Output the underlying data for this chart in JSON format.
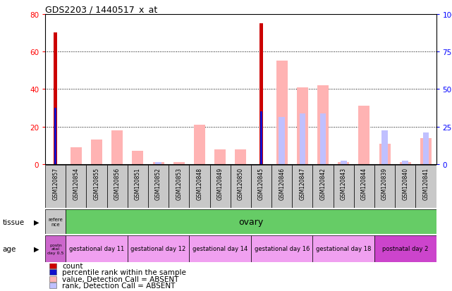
{
  "title": "GDS2203 / 1440517_x_at",
  "samples": [
    "GSM120857",
    "GSM120854",
    "GSM120855",
    "GSM120856",
    "GSM120851",
    "GSM120852",
    "GSM120853",
    "GSM120848",
    "GSM120849",
    "GSM120850",
    "GSM120845",
    "GSM120846",
    "GSM120847",
    "GSM120842",
    "GSM120843",
    "GSM120844",
    "GSM120839",
    "GSM120840",
    "GSM120841"
  ],
  "count_values": [
    70,
    0,
    0,
    0,
    0,
    0,
    0,
    0,
    0,
    0,
    75,
    0,
    0,
    0,
    0,
    0,
    0,
    0,
    0
  ],
  "rank_values": [
    30,
    0,
    0,
    0,
    0,
    0,
    0,
    0,
    0,
    0,
    28,
    0,
    0,
    0,
    0,
    0,
    0,
    0,
    0
  ],
  "absent_value": [
    0,
    9,
    13,
    18,
    7,
    1,
    1,
    21,
    8,
    8,
    0,
    55,
    41,
    42,
    1,
    31,
    11,
    1,
    14
  ],
  "absent_rank": [
    0,
    0,
    0,
    0,
    0,
    1,
    0,
    0,
    0,
    0,
    0,
    25,
    27,
    27,
    2,
    0,
    18,
    2,
    17
  ],
  "ylim_left": [
    0,
    80
  ],
  "ylim_right": [
    0,
    100
  ],
  "yticks_left": [
    0,
    20,
    40,
    60,
    80
  ],
  "yticks_right": [
    0,
    25,
    50,
    75,
    100
  ],
  "count_color": "#cc0000",
  "rank_color": "#1111cc",
  "absent_val_color": "#ffb3b3",
  "absent_rank_color": "#c0c0ff",
  "tissue_label": "tissue",
  "age_label": "age",
  "tissue_ref_label": "refere\nnce",
  "tissue_ref_color": "#c8c8c8",
  "tissue_ovary_label": "ovary",
  "tissue_ovary_color": "#66cc66",
  "age_ref_label": "postn\natal\nday 0.5",
  "age_ref_color": "#cc66cc",
  "age_groups": [
    {
      "label": "gestational day 11",
      "color": "#f0a0f0",
      "start": 1,
      "end": 4
    },
    {
      "label": "gestational day 12",
      "color": "#f0a0f0",
      "start": 4,
      "end": 7
    },
    {
      "label": "gestational day 14",
      "color": "#f0a0f0",
      "start": 7,
      "end": 10
    },
    {
      "label": "gestational day 16",
      "color": "#f0a0f0",
      "start": 10,
      "end": 13
    },
    {
      "label": "gestational day 18",
      "color": "#f0a0f0",
      "start": 13,
      "end": 16
    },
    {
      "label": "postnatal day 2",
      "color": "#cc44cc",
      "start": 16,
      "end": 19
    }
  ],
  "legend_items": [
    {
      "label": "count",
      "color": "#cc0000"
    },
    {
      "label": "percentile rank within the sample",
      "color": "#1111cc"
    },
    {
      "label": "value, Detection Call = ABSENT",
      "color": "#ffb3b3"
    },
    {
      "label": "rank, Detection Call = ABSENT",
      "color": "#c0c0ff"
    }
  ],
  "sample_box_color": "#c8c8c8",
  "bg_color": "#ffffff"
}
